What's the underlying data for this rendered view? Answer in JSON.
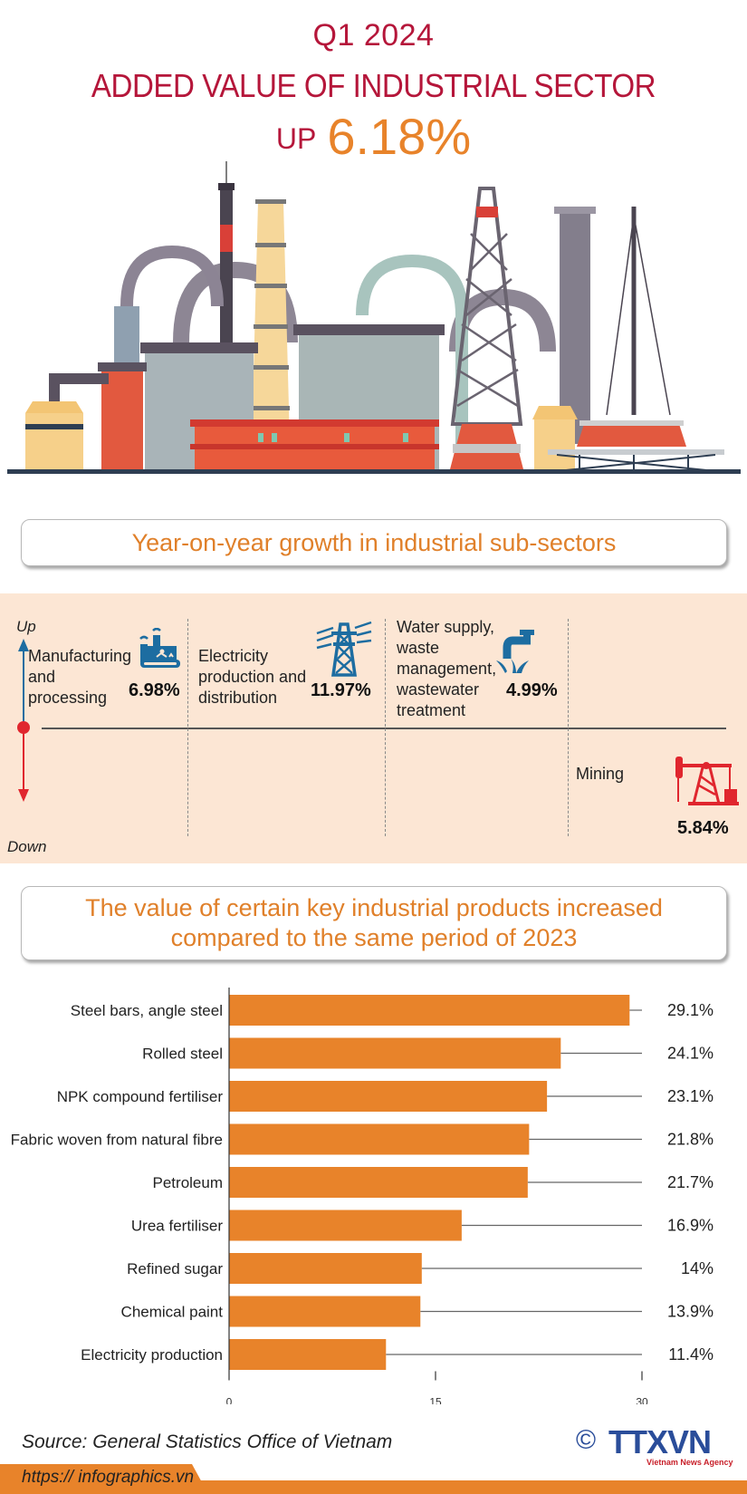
{
  "header": {
    "period": "Q1 2024",
    "title": "ADDED VALUE OF INDUSTRIAL SECTOR",
    "up_word": "UP",
    "up_value": "6.18%"
  },
  "section1": {
    "title": "Year-on-year growth in industrial sub-sectors"
  },
  "growth": {
    "up_label": "Up",
    "down_label": "Down",
    "sectors": [
      {
        "name_lines": [
          "Manufacturing",
          "and",
          "processing"
        ],
        "value": "6.98%",
        "direction": "up",
        "icon": "factory-icon"
      },
      {
        "name_lines": [
          "Electricity",
          "production and",
          "distribution"
        ],
        "value": "11.97%",
        "direction": "up",
        "icon": "power-pylon-icon"
      },
      {
        "name_lines": [
          "Water supply,",
          "waste",
          "management,",
          "wastewater",
          "treatment"
        ],
        "value": "4.99%",
        "direction": "up",
        "icon": "water-tap-icon"
      },
      {
        "name_lines": [
          "Mining"
        ],
        "value": "5.84%",
        "direction": "down",
        "icon": "oil-pump-icon"
      }
    ],
    "colors": {
      "up": "#1d6da1",
      "down": "#e0262e",
      "background": "#fce6d4"
    }
  },
  "section2": {
    "title_line1": "The value of certain key industrial products increased",
    "title_line2": "compared to the same period of 2023"
  },
  "chart_data": {
    "type": "bar",
    "orientation": "horizontal",
    "title": "The value of certain key industrial products increased compared to the same period of 2023",
    "categories": [
      "Steel bars, angle steel",
      "Rolled steel",
      "NPK compound fertiliser",
      "Fabric woven from natural fibre",
      "Petroleum",
      "Urea fertiliser",
      "Refined sugar",
      "Chemical paint",
      "Electricity production"
    ],
    "values": [
      29.1,
      24.1,
      23.1,
      21.8,
      21.7,
      16.9,
      14,
      13.9,
      11.4
    ],
    "value_labels": [
      "29.1%",
      "24.1%",
      "23.1%",
      "21.8%",
      "21.7%",
      "16.9%",
      "14%",
      "13.9%",
      "11.4%"
    ],
    "xlim": [
      0,
      30
    ],
    "xticks": [
      0,
      15,
      30
    ],
    "xtick_labels": [
      "0",
      "15",
      "30"
    ],
    "xlabel": "",
    "ylabel": "",
    "unit": "%",
    "grid": false,
    "bar_color": "#e8832a"
  },
  "footer": {
    "source": "Source: General Statistics Office of Vietnam",
    "copyright": "©",
    "logo_text": "TTXVN",
    "logo_subtext": "Vietnam News Agency",
    "url": "https:// infographics.vn"
  }
}
